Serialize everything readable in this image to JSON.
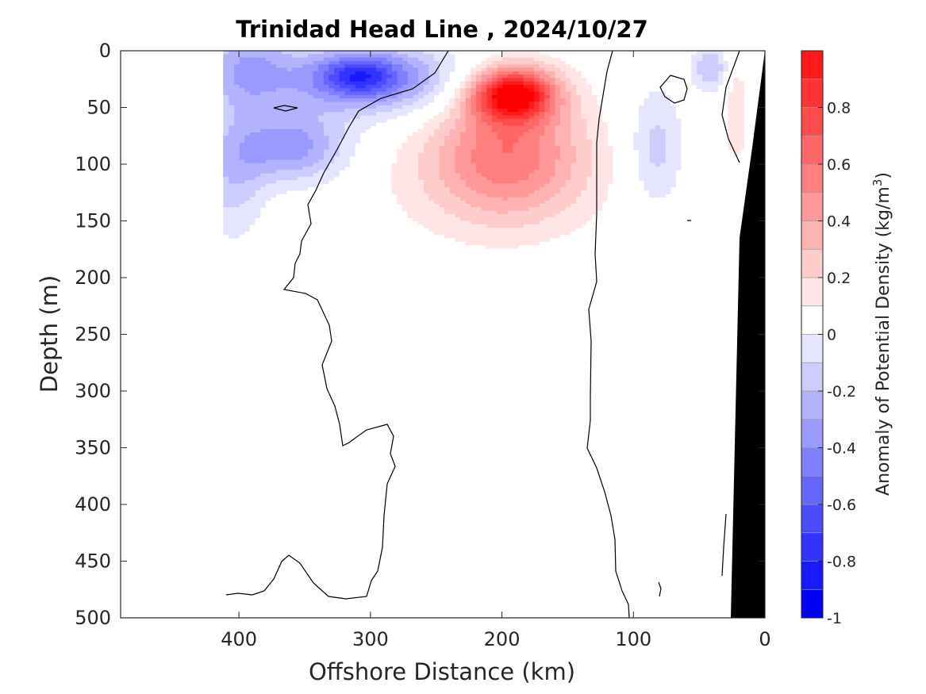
{
  "chart_data": {
    "type": "heatmap",
    "title": "Trinidad Head Line , 2024/10/27",
    "xlabel": "Offshore Distance (km)",
    "ylabel": "Depth (m)",
    "xlim": [
      490,
      0
    ],
    "ylim": [
      0,
      500
    ],
    "x_ticks": [
      "400",
      "300",
      "200",
      "100",
      "0"
    ],
    "x_tick_values": [
      400,
      300,
      200,
      100,
      0
    ],
    "y_ticks": [
      "0",
      "50",
      "100",
      "150",
      "200",
      "250",
      "300",
      "350",
      "400",
      "450",
      "500"
    ],
    "y_tick_values": [
      0,
      50,
      100,
      150,
      200,
      250,
      300,
      350,
      400,
      450,
      500
    ],
    "colorbar": {
      "label_main": "Anomaly of Potential Density (kg/m",
      "label_sup": "3",
      "label_end": ")",
      "tick_labels": [
        "0.8",
        "0.6",
        "0.4",
        "0.2",
        "0",
        "-0.2",
        "-0.4",
        "-0.6",
        "-0.8",
        "-1"
      ],
      "tick_values": [
        0.8,
        0.6,
        0.4,
        0.2,
        0,
        -0.2,
        -0.4,
        -0.6,
        -0.8,
        -1
      ],
      "range": [
        -1,
        1
      ],
      "level_step": 0.1,
      "colors_pos": [
        "#ffffff",
        "#ffe5e5",
        "#ffcccc",
        "#ffb2b2",
        "#ff9999",
        "#ff7f7f",
        "#ff6666",
        "#ff4c4c",
        "#ff3333",
        "#ff1919",
        "#ff0000"
      ],
      "colors_neg": [
        "#ffffff",
        "#e5e5ff",
        "#ccccff",
        "#b2b2ff",
        "#9999ff",
        "#7f7fff",
        "#6666ff",
        "#4c4cff",
        "#3333ff",
        "#1919ff",
        "#0000ff"
      ]
    },
    "anomaly_features": [
      {
        "kind": "positive core",
        "x_center": 192,
        "depth_center": 38,
        "peak": 0.95
      },
      {
        "kind": "negative core",
        "x_center": 310,
        "depth_center": 22,
        "peak": -0.85
      },
      {
        "kind": "negative lens",
        "x_center": 360,
        "depth_center": 85,
        "peak": -0.45
      },
      {
        "kind": "negative lens",
        "x_center": 83,
        "depth_center": 85,
        "peak": -0.25
      },
      {
        "kind": "negative lens",
        "x_center": 40,
        "depth_center": 15,
        "peak": -0.35
      },
      {
        "kind": "positive lens",
        "x_center": 22,
        "depth_center": 55,
        "peak": 0.2
      }
    ],
    "data_coverage": {
      "x_max": 410,
      "depth_max": 500
    },
    "bathymetry_color": "#000000"
  }
}
